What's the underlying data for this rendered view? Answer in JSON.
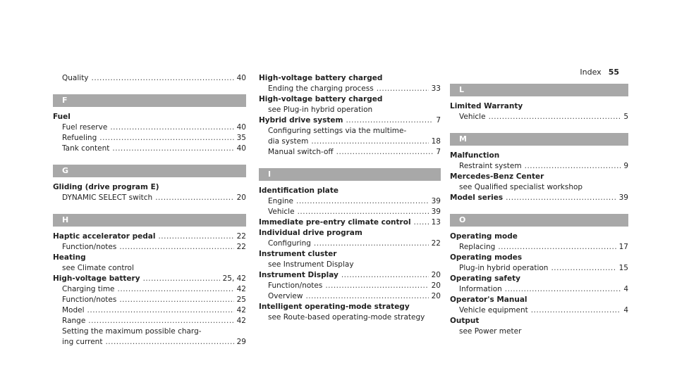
{
  "header": {
    "index_label": "Index",
    "page_number": "55"
  },
  "columns": [
    [
      {
        "type": "sub",
        "label": "Quality",
        "page": "40"
      },
      {
        "type": "letter",
        "label": "F"
      },
      {
        "type": "main",
        "label": "Fuel"
      },
      {
        "type": "sub",
        "label": "Fuel reserve",
        "page": "40"
      },
      {
        "type": "sub",
        "label": "Refueling",
        "page": "35"
      },
      {
        "type": "sub",
        "label": "Tank content",
        "page": "40"
      },
      {
        "type": "letter",
        "label": "G"
      },
      {
        "type": "main",
        "label": "Gliding (drive program E)"
      },
      {
        "type": "sub",
        "label": "DYNAMIC SELECT switch",
        "page": "20"
      },
      {
        "type": "letter",
        "label": "H"
      },
      {
        "type": "main",
        "label": "Haptic accelerator pedal",
        "page": "22"
      },
      {
        "type": "sub",
        "label": "Function/notes",
        "page": "22"
      },
      {
        "type": "main",
        "label": "Heating"
      },
      {
        "type": "subtext",
        "label": "see Climate control"
      },
      {
        "type": "main",
        "label": "High-voltage battery",
        "page": "25, 42"
      },
      {
        "type": "sub",
        "label": "Charging time",
        "page": "42"
      },
      {
        "type": "sub",
        "label": "Function/notes",
        "page": "25"
      },
      {
        "type": "sub",
        "label": "Model",
        "page": "42"
      },
      {
        "type": "sub",
        "label": "Range",
        "page": "42"
      },
      {
        "type": "subtext",
        "label": "Setting the maximum possible charg-"
      },
      {
        "type": "sub",
        "label": "ing current",
        "page": "29"
      }
    ],
    [
      {
        "type": "main",
        "label": "High-voltage battery charged"
      },
      {
        "type": "sub",
        "label": "Ending the charging process",
        "page": "33"
      },
      {
        "type": "main",
        "label": "High-voltage battery charged"
      },
      {
        "type": "subtext",
        "label": "see Plug-in hybrid operation"
      },
      {
        "type": "main",
        "label": "Hybrid drive system",
        "page": "7"
      },
      {
        "type": "subtext",
        "label": "Configuring settings via the multime-"
      },
      {
        "type": "sub",
        "label": "dia system",
        "page": "18"
      },
      {
        "type": "sub",
        "label": "Manual switch-off",
        "page": "7"
      },
      {
        "type": "letter",
        "label": "I"
      },
      {
        "type": "main",
        "label": "Identification plate"
      },
      {
        "type": "sub",
        "label": "Engine",
        "page": "39"
      },
      {
        "type": "sub",
        "label": "Vehicle",
        "page": "39"
      },
      {
        "type": "main",
        "label": "Immediate pre-entry climate control",
        "page": "13"
      },
      {
        "type": "main",
        "label": "Individual drive program"
      },
      {
        "type": "sub",
        "label": "Configuring",
        "page": "22"
      },
      {
        "type": "main",
        "label": "Instrument cluster"
      },
      {
        "type": "subtext",
        "label": "see Instrument Display"
      },
      {
        "type": "main",
        "label": "Instrument Display",
        "page": "20"
      },
      {
        "type": "sub",
        "label": "Function/notes",
        "page": "20"
      },
      {
        "type": "sub",
        "label": "Overview",
        "page": "20"
      },
      {
        "type": "main",
        "label": "Intelligent operating-mode strategy"
      },
      {
        "type": "subtext",
        "label": "see Route-based operating-mode strategy"
      }
    ],
    [
      {
        "type": "letter",
        "label": "L"
      },
      {
        "type": "main",
        "label": "Limited Warranty"
      },
      {
        "type": "sub",
        "label": "Vehicle",
        "page": "5"
      },
      {
        "type": "letter",
        "label": "M"
      },
      {
        "type": "main",
        "label": "Malfunction"
      },
      {
        "type": "sub",
        "label": "Restraint system",
        "page": "9"
      },
      {
        "type": "main",
        "label": "Mercedes-Benz Center"
      },
      {
        "type": "subtext",
        "label": "see Qualified specialist workshop"
      },
      {
        "type": "main",
        "label": "Model series",
        "page": "39"
      },
      {
        "type": "letter",
        "label": "O"
      },
      {
        "type": "main",
        "label": "Operating mode"
      },
      {
        "type": "sub",
        "label": "Replacing",
        "page": "17"
      },
      {
        "type": "main",
        "label": "Operating modes"
      },
      {
        "type": "sub",
        "label": "Plug-in hybrid operation",
        "page": "15"
      },
      {
        "type": "main",
        "label": "Operating safety"
      },
      {
        "type": "sub",
        "label": "Information",
        "page": "4"
      },
      {
        "type": "main",
        "label": "Operator's Manual"
      },
      {
        "type": "sub",
        "label": "Vehicle equipment",
        "page": "4"
      },
      {
        "type": "main",
        "label": "Output"
      },
      {
        "type": "subtext",
        "label": "see Power meter"
      }
    ]
  ]
}
